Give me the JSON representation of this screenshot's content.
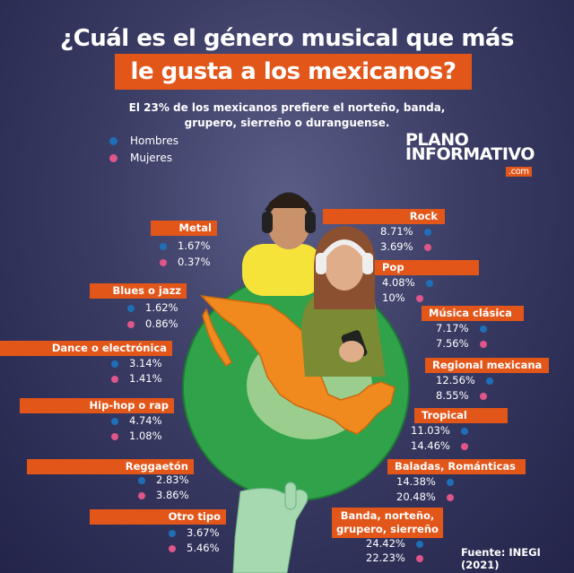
{
  "title": {
    "line1": "¿Cuál es el género musical que más",
    "line2": "le gusta a los mexicanos?"
  },
  "subtitle": {
    "line1": "El 23% de los mexicanos prefiere el norteño, banda,",
    "line2": "grupero, sierreño o duranguense."
  },
  "legend": {
    "men": "Hombres",
    "women": "Mujeres"
  },
  "logo": {
    "line1": "PLANO",
    "line2": "INFORMATIVO",
    "suffix": ".com"
  },
  "source": "Fuente: INEGI (2021)",
  "colors": {
    "men": "#1f6fb8",
    "women": "#e0558a",
    "accent": "#e2561a",
    "globe": "#2fa24a",
    "map": "#f08a1e"
  },
  "chart_data": {
    "type": "bar",
    "title": "¿Cuál es el género musical que más le gusta a los mexicanos?",
    "subtitle": "El 23% de los mexicanos prefiere el norteño, banda, grupero, sierreño o duranguense.",
    "unit": "%",
    "categories": [
      "Metal",
      "Blues o jazz",
      "Dance o electrónica",
      "Hip-hop o rap",
      "Reggaetón",
      "Otro tipo",
      "Rock",
      "Pop",
      "Música clásica",
      "Regional mexicana",
      "Tropical",
      "Baladas, Románticas",
      "Banda, norteño, grupero, sierreño"
    ],
    "series": [
      {
        "name": "Hombres",
        "values": [
          1.67,
          1.62,
          3.14,
          4.74,
          2.83,
          3.67,
          8.71,
          4.08,
          7.17,
          12.56,
          11.03,
          14.38,
          24.42
        ]
      },
      {
        "name": "Mujeres",
        "values": [
          0.37,
          0.86,
          1.41,
          1.08,
          3.86,
          5.46,
          3.69,
          10,
          7.56,
          8.55,
          14.46,
          20.48,
          22.23
        ]
      }
    ],
    "labels": {
      "men": [
        "1.67%",
        "1.62%",
        "3.14%",
        "4.74%",
        "2.83%",
        "3.67%",
        "8.71%",
        "4.08%",
        "7.17%",
        "12.56%",
        "11.03%",
        "14.38%",
        "24.42%"
      ],
      "women": [
        "0.37%",
        "0.86%",
        "1.41%",
        "1.08%",
        "3.86%",
        "5.46%",
        "3.69%",
        "10%",
        "7.56%",
        "8.55%",
        "14.46%",
        "20.48%",
        "22.23%"
      ]
    },
    "legend_position": "top-left"
  }
}
